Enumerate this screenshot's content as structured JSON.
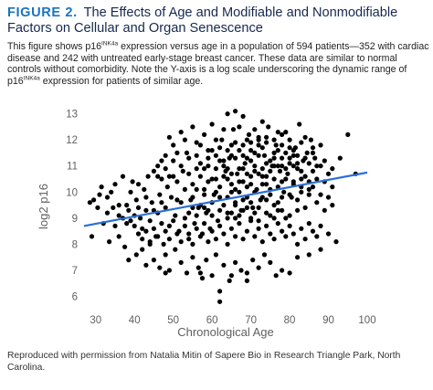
{
  "figure": {
    "number_label": "FIGURE 2.",
    "title": "The Effects of Age and Modifiable and Nonmodifiable Factors on Cellular and Organ Senescence",
    "caption": {
      "part1": "This figure shows p16",
      "sup1": "INK4a",
      "part2": " expression versus age in a population of 594 patients—352 with cardiac disease and 242 with untreated early-stage breast cancer. These data are similar to normal controls without comorbidity. Note the Y-axis is a log scale underscoring the dynamic range of p16",
      "sup2": "INK4a",
      "part3": " expression for patients of similar age."
    },
    "credit": "Reproduced with permission from Natalia Mitin of Sapere Bio in Research Triangle Park, North Carolina."
  },
  "colors": {
    "title_number": "#1a73c2",
    "title_text": "#16294f",
    "points": "#000000",
    "fit_line": "#2a6fd6",
    "axis_text": "#5f5f5f"
  },
  "chart_data": {
    "type": "scatter",
    "xlabel": "Chronological Age",
    "ylabel": "log2 p16",
    "xlim": [
      27,
      100
    ],
    "ylim": [
      5.6,
      13.3
    ],
    "xticks": [
      30,
      40,
      50,
      60,
      70,
      80,
      90,
      100
    ],
    "yticks": [
      6,
      7,
      8,
      9,
      10,
      11,
      12,
      13
    ],
    "grid": false,
    "fit_line": {
      "x": [
        27,
        100
      ],
      "y": [
        8.7,
        10.75
      ]
    },
    "points": [
      [
        28.5,
        9.6
      ],
      [
        29.5,
        9.7
      ],
      [
        30.5,
        9.4
      ],
      [
        31,
        9.9
      ],
      [
        32,
        8.8
      ],
      [
        33,
        9.2
      ],
      [
        34,
        10.0
      ],
      [
        35,
        8.7
      ],
      [
        29,
        8.3
      ],
      [
        31.5,
        10.2
      ],
      [
        34.5,
        9.4
      ],
      [
        33.5,
        8.1
      ],
      [
        36,
        9.5
      ],
      [
        37,
        9.0
      ],
      [
        38,
        8.8
      ],
      [
        38.5,
        9.3
      ],
      [
        39,
        10.0
      ],
      [
        39.5,
        10.4
      ],
      [
        40,
        9.1
      ],
      [
        40.5,
        9.7
      ],
      [
        41,
        10.3
      ],
      [
        41.5,
        9.0
      ],
      [
        42,
        8.6
      ],
      [
        42.5,
        10.1
      ],
      [
        43,
        9.3
      ],
      [
        43.5,
        10.6
      ],
      [
        44,
        8.9
      ],
      [
        44.5,
        9.6
      ],
      [
        45,
        10.8
      ],
      [
        45.5,
        8.3
      ],
      [
        46,
        9.2
      ],
      [
        46.5,
        9.9
      ],
      [
        47,
        10.5
      ],
      [
        47.5,
        8.0
      ],
      [
        48,
        9.4
      ],
      [
        48.5,
        10.2
      ],
      [
        49,
        8.7
      ],
      [
        49.5,
        9.8
      ],
      [
        50,
        11.2
      ],
      [
        50.5,
        9.1
      ],
      [
        51,
        10.4
      ],
      [
        51.5,
        8.5
      ],
      [
        52,
        9.6
      ],
      [
        52.5,
        10.8
      ],
      [
        53,
        9.0
      ],
      [
        53.5,
        11.5
      ],
      [
        54,
        8.2
      ],
      [
        54.5,
        9.7
      ],
      [
        55,
        10.3
      ],
      [
        55.5,
        8.8
      ],
      [
        56,
        10.9
      ],
      [
        56.5,
        9.4
      ],
      [
        57,
        11.8
      ],
      [
        57.5,
        8.4
      ],
      [
        58,
        10.1
      ],
      [
        58.5,
        9.2
      ],
      [
        59,
        11.0
      ],
      [
        59.5,
        8.6
      ],
      [
        60,
        10.5
      ],
      [
        60.5,
        9.9
      ],
      [
        61,
        11.4
      ],
      [
        61.5,
        8.9
      ],
      [
        62,
        10.2
      ],
      [
        62.5,
        12.0
      ],
      [
        63,
        9.5
      ],
      [
        63.5,
        10.8
      ],
      [
        64,
        9.0
      ],
      [
        64.5,
        11.3
      ],
      [
        65,
        10.0
      ],
      [
        65.5,
        12.4
      ],
      [
        66,
        9.6
      ],
      [
        66.5,
        10.7
      ],
      [
        67,
        11.6
      ],
      [
        67.5,
        9.3
      ],
      [
        68,
        10.4
      ],
      [
        68.5,
        11.1
      ],
      [
        69,
        9.8
      ],
      [
        69.5,
        12.2
      ],
      [
        70,
        10.6
      ],
      [
        70.5,
        9.4
      ],
      [
        71,
        11.5
      ],
      [
        71.5,
        10.1
      ],
      [
        72,
        12.0
      ],
      [
        72.5,
        9.7
      ],
      [
        73,
        10.9
      ],
      [
        73.5,
        11.4
      ],
      [
        74,
        10.3
      ],
      [
        74.5,
        12.5
      ],
      [
        75,
        9.9
      ],
      [
        75.5,
        11.0
      ],
      [
        76,
        10.5
      ],
      [
        76.5,
        11.8
      ],
      [
        77,
        9.6
      ],
      [
        77.5,
        10.8
      ],
      [
        78,
        11.3
      ],
      [
        78.5,
        10.0
      ],
      [
        79,
        12.3
      ],
      [
        79.5,
        10.7
      ],
      [
        80,
        11.1
      ],
      [
        80.5,
        9.8
      ],
      [
        81,
        10.4
      ],
      [
        81.5,
        11.7
      ],
      [
        82,
        10.9
      ],
      [
        82.5,
        12.6
      ],
      [
        83,
        10.2
      ],
      [
        83.5,
        11.2
      ],
      [
        84,
        10.6
      ],
      [
        84.5,
        11.5
      ],
      [
        85,
        10.1
      ],
      [
        85.5,
        12.0
      ],
      [
        86,
        10.8
      ],
      [
        86.5,
        11.3
      ],
      [
        87,
        10.5
      ],
      [
        88,
        11.0
      ],
      [
        89,
        10.4
      ],
      [
        90,
        10.7
      ],
      [
        91,
        10.2
      ],
      [
        93,
        11.3
      ],
      [
        95,
        12.2
      ],
      [
        97,
        10.7
      ],
      [
        36,
        8.3
      ],
      [
        37.5,
        7.9
      ],
      [
        38.5,
        7.4
      ],
      [
        40.5,
        7.6
      ],
      [
        42,
        7.8
      ],
      [
        43,
        7.2
      ],
      [
        44,
        8.0
      ],
      [
        45,
        7.4
      ],
      [
        46.5,
        7.1
      ],
      [
        48,
        7.6
      ],
      [
        49,
        7.0
      ],
      [
        50.5,
        7.8
      ],
      [
        52,
        7.3
      ],
      [
        53.5,
        6.9
      ],
      [
        55,
        7.5
      ],
      [
        56.5,
        7.1
      ],
      [
        57.5,
        6.7
      ],
      [
        58.5,
        7.4
      ],
      [
        60,
        6.8
      ],
      [
        61,
        7.6
      ],
      [
        62,
        6.2
      ],
      [
        63,
        7.2
      ],
      [
        64.5,
        6.6
      ],
      [
        66,
        7.3
      ],
      [
        67.5,
        7.0
      ],
      [
        69,
        6.9
      ],
      [
        70.5,
        7.4
      ],
      [
        72,
        7.1
      ],
      [
        73.5,
        7.6
      ],
      [
        75,
        7.3
      ],
      [
        76.5,
        6.8
      ],
      [
        78,
        7.0
      ],
      [
        80,
        6.9
      ],
      [
        82,
        7.5
      ],
      [
        57,
        6.9
      ],
      [
        62,
        5.8
      ],
      [
        65,
        6.8
      ],
      [
        48,
        6.9
      ],
      [
        69,
        6.6
      ],
      [
        40,
        8.7
      ],
      [
        41,
        8.4
      ],
      [
        42,
        8.2
      ],
      [
        43,
        8.5
      ],
      [
        44,
        8.1
      ],
      [
        45,
        8.6
      ],
      [
        46,
        8.3
      ],
      [
        47,
        8.8
      ],
      [
        48,
        8.5
      ],
      [
        49,
        8.2
      ],
      [
        50,
        8.9
      ],
      [
        51,
        8.4
      ],
      [
        52,
        8.1
      ],
      [
        53,
        8.7
      ],
      [
        54,
        8.4
      ],
      [
        55,
        8.0
      ],
      [
        56,
        8.6
      ],
      [
        57,
        8.3
      ],
      [
        58,
        8.8
      ],
      [
        59,
        8.1
      ],
      [
        60,
        8.5
      ],
      [
        61,
        8.2
      ],
      [
        62,
        8.7
      ],
      [
        63,
        8.4
      ],
      [
        64,
        8.0
      ],
      [
        65,
        8.6
      ],
      [
        66,
        8.3
      ],
      [
        67,
        8.8
      ],
      [
        68,
        8.2
      ],
      [
        69,
        8.5
      ],
      [
        70,
        8.9
      ],
      [
        71,
        8.3
      ],
      [
        72,
        8.6
      ],
      [
        73,
        8.1
      ],
      [
        74,
        8.7
      ],
      [
        75,
        8.4
      ],
      [
        76,
        8.2
      ],
      [
        77,
        8.8
      ],
      [
        78,
        8.5
      ],
      [
        79,
        8.3
      ],
      [
        80,
        8.7
      ],
      [
        81,
        8.4
      ],
      [
        82,
        8.0
      ],
      [
        83,
        8.6
      ],
      [
        84,
        8.2
      ],
      [
        85,
        8.8
      ],
      [
        86,
        8.5
      ],
      [
        87,
        8.3
      ],
      [
        88,
        8.7
      ],
      [
        90,
        8.4
      ],
      [
        92,
        8.1
      ],
      [
        85,
        7.6
      ],
      [
        88,
        7.8
      ],
      [
        46,
        11.0
      ],
      [
        48,
        11.4
      ],
      [
        49,
        12.1
      ],
      [
        50,
        11.8
      ],
      [
        51,
        11.5
      ],
      [
        52,
        12.3
      ],
      [
        53,
        12.0
      ],
      [
        54,
        11.3
      ],
      [
        55,
        12.5
      ],
      [
        56,
        11.9
      ],
      [
        58,
        12.2
      ],
      [
        59,
        11.6
      ],
      [
        60,
        12.6
      ],
      [
        61,
        12.0
      ],
      [
        62,
        11.7
      ],
      [
        63,
        12.4
      ],
      [
        64,
        13.0
      ],
      [
        65,
        11.8
      ],
      [
        66,
        13.1
      ],
      [
        67,
        12.5
      ],
      [
        68,
        12.9
      ],
      [
        69,
        12.0
      ],
      [
        70,
        11.9
      ],
      [
        71,
        12.4
      ],
      [
        72,
        12.1
      ],
      [
        73,
        12.7
      ],
      [
        74,
        11.9
      ],
      [
        76,
        12.0
      ],
      [
        77,
        12.3
      ],
      [
        78,
        11.8
      ],
      [
        80,
        12.0
      ],
      [
        81,
        11.6
      ],
      [
        83,
        11.9
      ],
      [
        84,
        12.1
      ],
      [
        86,
        11.5
      ],
      [
        88,
        11.8
      ],
      [
        46,
        10.6
      ],
      [
        47,
        11.2
      ],
      [
        48,
        10.9
      ],
      [
        50,
        10.6
      ],
      [
        52,
        11.0
      ],
      [
        54,
        10.7
      ],
      [
        56,
        11.4
      ],
      [
        58,
        10.9
      ],
      [
        60,
        11.6
      ],
      [
        62,
        11.2
      ],
      [
        64,
        10.9
      ],
      [
        66,
        11.3
      ],
      [
        68,
        11.8
      ],
      [
        70,
        11.2
      ],
      [
        72,
        11.4
      ],
      [
        74,
        11.1
      ],
      [
        76,
        11.5
      ],
      [
        78,
        11.0
      ],
      [
        80,
        11.3
      ],
      [
        82,
        11.4
      ],
      [
        54,
        9.2
      ],
      [
        55,
        9.8
      ],
      [
        56,
        10.1
      ],
      [
        57,
        9.5
      ],
      [
        58,
        9.9
      ],
      [
        59,
        10.4
      ],
      [
        60,
        9.6
      ],
      [
        61,
        10.0
      ],
      [
        62,
        9.3
      ],
      [
        63,
        10.6
      ],
      [
        64,
        9.8
      ],
      [
        65,
        10.3
      ],
      [
        66,
        9.5
      ],
      [
        67,
        10.0
      ],
      [
        68,
        9.7
      ],
      [
        69,
        10.2
      ],
      [
        70,
        9.6
      ],
      [
        71,
        10.0
      ],
      [
        72,
        9.4
      ],
      [
        73,
        10.3
      ],
      [
        74,
        9.7
      ],
      [
        75,
        10.1
      ],
      [
        76,
        9.5
      ],
      [
        77,
        10.2
      ],
      [
        78,
        9.8
      ],
      [
        79,
        10.5
      ],
      [
        80,
        9.9
      ],
      [
        81,
        10.3
      ],
      [
        82,
        9.7
      ],
      [
        83,
        10.0
      ],
      [
        84,
        9.4
      ],
      [
        85,
        9.9
      ],
      [
        86,
        10.2
      ],
      [
        87,
        9.6
      ],
      [
        88,
        9.9
      ],
      [
        89,
        9.3
      ],
      [
        90,
        9.8
      ],
      [
        91,
        9.5
      ],
      [
        56,
        9.1
      ],
      [
        58,
        9.4
      ],
      [
        60,
        9.1
      ],
      [
        62,
        9.8
      ],
      [
        64,
        9.2
      ],
      [
        66,
        9.0
      ],
      [
        68,
        9.3
      ],
      [
        70,
        9.0
      ],
      [
        72,
        8.9
      ],
      [
        74,
        9.2
      ],
      [
        76,
        9.0
      ],
      [
        78,
        9.3
      ],
      [
        80,
        9.1
      ],
      [
        82,
        9.3
      ],
      [
        33,
        9.8
      ],
      [
        35,
        10.3
      ],
      [
        36,
        9.1
      ],
      [
        37,
        10.6
      ],
      [
        38,
        9.5
      ],
      [
        39,
        8.9
      ],
      [
        41,
        9.4
      ],
      [
        43,
        9.8
      ],
      [
        45,
        9.3
      ],
      [
        47,
        9.6
      ],
      [
        49,
        10.6
      ],
      [
        51,
        9.7
      ],
      [
        53,
        10.1
      ],
      [
        55,
        9.4
      ],
      [
        57,
        10.6
      ],
      [
        59,
        9.3
      ],
      [
        61,
        10.9
      ],
      [
        63,
        11.0
      ],
      [
        65,
        10.7
      ],
      [
        67,
        10.9
      ],
      [
        69,
        11.3
      ],
      [
        71,
        10.8
      ],
      [
        73,
        11.7
      ],
      [
        75,
        11.2
      ],
      [
        77,
        11.0
      ],
      [
        79,
        11.5
      ],
      [
        81,
        11.0
      ],
      [
        83,
        10.8
      ],
      [
        85,
        11.1
      ],
      [
        87,
        11.0
      ],
      [
        89,
        11.2
      ],
      [
        91,
        10.9
      ],
      [
        57,
        11.1
      ],
      [
        59,
        11.3
      ],
      [
        61,
        10.5
      ],
      [
        63,
        11.2
      ],
      [
        65,
        11.4
      ],
      [
        67,
        10.4
      ],
      [
        69,
        10.7
      ],
      [
        71,
        11.0
      ],
      [
        73,
        10.6
      ],
      [
        75,
        10.8
      ],
      [
        77,
        11.6
      ],
      [
        79,
        10.9
      ],
      [
        81,
        11.4
      ],
      [
        83,
        10.5
      ],
      [
        85,
        10.4
      ],
      [
        64,
        10.5
      ],
      [
        65,
        9.2
      ],
      [
        66,
        10.1
      ],
      [
        67,
        9.1
      ],
      [
        68,
        10.9
      ],
      [
        69,
        9.4
      ],
      [
        70,
        10.3
      ],
      [
        71,
        9.2
      ],
      [
        72,
        10.7
      ],
      [
        73,
        9.8
      ],
      [
        74,
        10.6
      ],
      [
        75,
        9.1
      ],
      [
        76,
        11.0
      ],
      [
        77,
        9.3
      ],
      [
        78,
        10.4
      ],
      [
        79,
        9.0
      ],
      [
        64,
        11.6
      ],
      [
        66,
        11.9
      ],
      [
        68,
        11.4
      ],
      [
        70,
        11.6
      ],
      [
        72,
        11.8
      ],
      [
        74,
        12.1
      ],
      [
        76,
        11.3
      ],
      [
        78,
        12.2
      ],
      [
        80,
        11.7
      ],
      [
        82,
        11.1
      ],
      [
        84,
        11.3
      ],
      [
        86,
        11.7
      ]
    ]
  }
}
